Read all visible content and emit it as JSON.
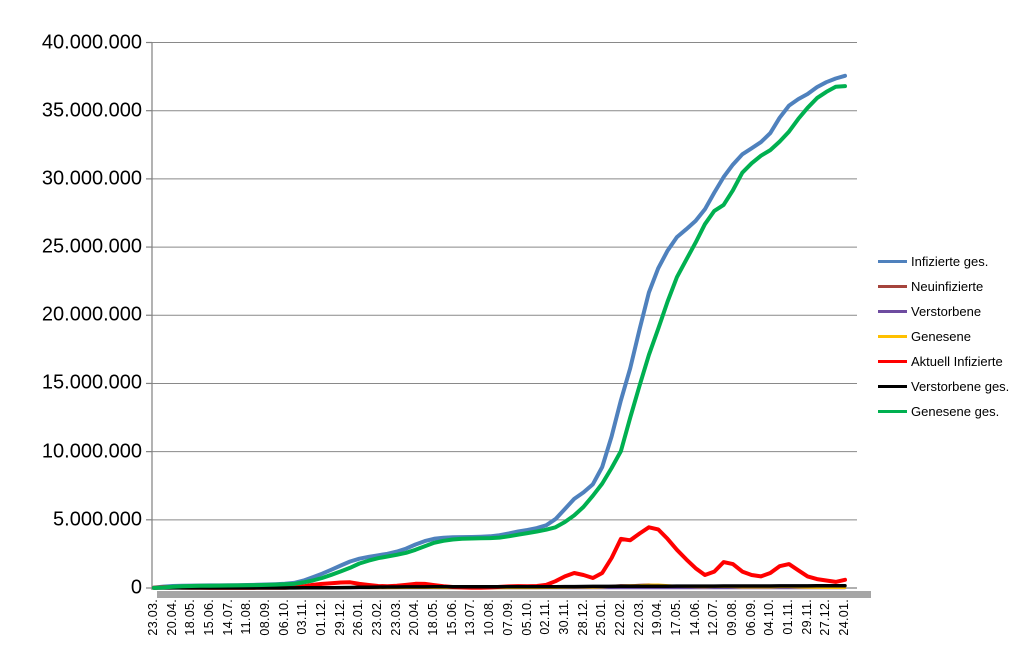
{
  "chart_data": {
    "type": "line",
    "title": "",
    "xlabel": "",
    "ylabel": "",
    "grid": true,
    "legend_position": "right",
    "values_unit": "millions",
    "y_axis": {
      "min": 0,
      "max": 40000000,
      "tick_step": 5000000,
      "tick_labels": [
        "40.000.000",
        "35.000.000",
        "30.000.000",
        "25.000.000",
        "20.000.000",
        "15.000.000",
        "10.000.000",
        "5.000.000",
        "0"
      ]
    },
    "x_tick_labels": [
      "23.03.",
      "20.04.",
      "18.05.",
      "15.06.",
      "14.07.",
      "11.08.",
      "08.09.",
      "06.10.",
      "03.11.",
      "01.12.",
      "29.12.",
      "26.01.",
      "23.02.",
      "23.03.",
      "20.04.",
      "18.05.",
      "15.06.",
      "13.07.",
      "10.08.",
      "07.09.",
      "05.10.",
      "02.11.",
      "30.11.",
      "28.12.",
      "25.01.",
      "22.02.",
      "22.03.",
      "19.04.",
      "17.05.",
      "14.06.",
      "12.07.",
      "09.08.",
      "06.09.",
      "04.10.",
      "01.11.",
      "29.11.",
      "27.12.",
      "24.01."
    ],
    "points_per_label": 2,
    "series": [
      {
        "name": "Infizierte ges.",
        "color": "#4F81BD",
        "values": [
          0.03,
          0.1,
          0.145,
          0.165,
          0.176,
          0.182,
          0.187,
          0.194,
          0.2,
          0.206,
          0.218,
          0.233,
          0.253,
          0.275,
          0.306,
          0.373,
          0.545,
          0.79,
          1.05,
          1.34,
          1.65,
          1.94,
          2.15,
          2.29,
          2.4,
          2.51,
          2.67,
          2.89,
          3.19,
          3.44,
          3.61,
          3.68,
          3.72,
          3.73,
          3.74,
          3.76,
          3.79,
          3.87,
          4.0,
          4.14,
          4.25,
          4.39,
          4.6,
          5.05,
          5.79,
          6.53,
          7.01,
          7.61,
          8.87,
          11.12,
          13.76,
          16.11,
          18.98,
          21.67,
          23.44,
          24.74,
          25.73,
          26.31,
          26.92,
          27.77,
          28.99,
          30.13,
          31.05,
          31.8,
          32.24,
          32.7,
          33.36,
          34.48,
          35.37,
          35.85,
          36.22,
          36.73,
          37.09,
          37.36,
          37.56
        ]
      },
      {
        "name": "Neuinfizierte",
        "color": "#A5443C",
        "values": [
          0.005,
          0.006,
          0.003,
          0.002,
          0.001,
          0.001,
          0.001,
          0.001,
          0.001,
          0.001,
          0.001,
          0.001,
          0.002,
          0.002,
          0.003,
          0.006,
          0.015,
          0.019,
          0.018,
          0.02,
          0.022,
          0.018,
          0.012,
          0.008,
          0.008,
          0.009,
          0.013,
          0.018,
          0.021,
          0.018,
          0.012,
          0.006,
          0.002,
          0.001,
          0.001,
          0.001,
          0.002,
          0.005,
          0.008,
          0.01,
          0.008,
          0.009,
          0.015,
          0.03,
          0.05,
          0.05,
          0.04,
          0.05,
          0.09,
          0.15,
          0.19,
          0.18,
          0.22,
          0.25,
          0.19,
          0.13,
          0.08,
          0.06,
          0.06,
          0.08,
          0.11,
          0.09,
          0.06,
          0.04,
          0.04,
          0.05,
          0.08,
          0.09,
          0.06,
          0.04,
          0.03,
          0.03,
          0.02,
          0.015,
          0.02
        ]
      },
      {
        "name": "Verstorbene",
        "color": "#6E4CA0",
        "values": [
          0.001,
          0.001,
          0.001,
          0.001,
          0.001,
          0.001,
          0.001,
          0.001,
          0.001,
          0.001,
          0.001,
          0.001,
          0.001,
          0.001,
          0.001,
          0.001,
          0.001,
          0.001,
          0.001,
          0.001,
          0.001,
          0.001,
          0.001,
          0.001,
          0.001,
          0.001,
          0.001,
          0.001,
          0.001,
          0.001,
          0.001,
          0.001,
          0.001,
          0.001,
          0.001,
          0.001,
          0.001,
          0.001,
          0.001,
          0.001,
          0.001,
          0.001,
          0.001,
          0.001,
          0.001,
          0.001,
          0.001,
          0.001,
          0.001,
          0.001,
          0.001,
          0.001,
          0.001,
          0.001,
          0.001,
          0.001,
          0.001,
          0.001,
          0.001,
          0.001,
          0.001,
          0.001,
          0.001,
          0.001,
          0.001,
          0.001,
          0.001,
          0.001,
          0.001,
          0.001,
          0.001,
          0.001,
          0.001,
          0.001,
          0.001
        ]
      },
      {
        "name": "Genesene",
        "color": "#FFC000",
        "values": [
          0.002,
          0.004,
          0.004,
          0.003,
          0.002,
          0.001,
          0.001,
          0.001,
          0.001,
          0.001,
          0.001,
          0.001,
          0.001,
          0.002,
          0.002,
          0.004,
          0.009,
          0.014,
          0.017,
          0.019,
          0.02,
          0.02,
          0.015,
          0.01,
          0.008,
          0.008,
          0.01,
          0.014,
          0.018,
          0.019,
          0.015,
          0.009,
          0.004,
          0.002,
          0.001,
          0.001,
          0.001,
          0.003,
          0.006,
          0.009,
          0.009,
          0.008,
          0.011,
          0.02,
          0.035,
          0.045,
          0.045,
          0.04,
          0.06,
          0.11,
          0.16,
          0.18,
          0.19,
          0.23,
          0.24,
          0.19,
          0.14,
          0.1,
          0.08,
          0.07,
          0.09,
          0.1,
          0.08,
          0.06,
          0.05,
          0.05,
          0.06,
          0.08,
          0.08,
          0.06,
          0.04,
          0.03,
          0.025,
          0.02,
          0.018
        ]
      },
      {
        "name": "Aktuell Infizierte",
        "color": "#FF0000",
        "values": [
          0.025,
          0.06,
          0.05,
          0.03,
          0.02,
          0.012,
          0.008,
          0.006,
          0.006,
          0.007,
          0.009,
          0.012,
          0.014,
          0.016,
          0.025,
          0.06,
          0.12,
          0.23,
          0.3,
          0.35,
          0.4,
          0.42,
          0.3,
          0.22,
          0.15,
          0.13,
          0.16,
          0.23,
          0.31,
          0.3,
          0.21,
          0.13,
          0.07,
          0.035,
          0.02,
          0.025,
          0.04,
          0.08,
          0.12,
          0.14,
          0.13,
          0.15,
          0.23,
          0.5,
          0.85,
          1.1,
          0.95,
          0.73,
          1.1,
          2.2,
          3.6,
          3.5,
          4.0,
          4.45,
          4.3,
          3.6,
          2.8,
          2.1,
          1.45,
          0.95,
          1.2,
          1.9,
          1.75,
          1.2,
          0.95,
          0.85,
          1.1,
          1.6,
          1.75,
          1.3,
          0.85,
          0.65,
          0.55,
          0.45,
          0.6
        ]
      },
      {
        "name": "Verstorbene ges.",
        "color": "#000000",
        "values": [
          0.001,
          0.003,
          0.005,
          0.007,
          0.008,
          0.0085,
          0.0088,
          0.009,
          0.0091,
          0.0092,
          0.0093,
          0.0094,
          0.0095,
          0.0096,
          0.0098,
          0.01,
          0.011,
          0.013,
          0.017,
          0.023,
          0.03,
          0.04,
          0.053,
          0.061,
          0.068,
          0.072,
          0.075,
          0.078,
          0.08,
          0.083,
          0.086,
          0.088,
          0.09,
          0.0905,
          0.091,
          0.0915,
          0.092,
          0.0922,
          0.0925,
          0.093,
          0.094,
          0.095,
          0.096,
          0.098,
          0.101,
          0.105,
          0.111,
          0.114,
          0.117,
          0.119,
          0.121,
          0.124,
          0.126,
          0.129,
          0.132,
          0.134,
          0.137,
          0.138,
          0.14,
          0.141,
          0.142,
          0.144,
          0.145,
          0.146,
          0.147,
          0.148,
          0.15,
          0.151,
          0.153,
          0.154,
          0.156,
          0.158,
          0.161,
          0.163,
          0.165
        ]
      },
      {
        "name": "Genesene ges.",
        "color": "#00B050",
        "values": [
          0.004,
          0.037,
          0.09,
          0.128,
          0.148,
          0.162,
          0.17,
          0.179,
          0.185,
          0.19,
          0.2,
          0.212,
          0.229,
          0.249,
          0.271,
          0.303,
          0.414,
          0.547,
          0.733,
          0.967,
          1.22,
          1.48,
          1.797,
          2.009,
          2.182,
          2.308,
          2.435,
          2.582,
          2.8,
          3.057,
          3.314,
          3.462,
          3.56,
          3.605,
          3.629,
          3.644,
          3.658,
          3.698,
          3.788,
          3.907,
          4.026,
          4.145,
          4.274,
          4.452,
          4.839,
          5.325,
          5.949,
          6.766,
          7.653,
          8.801,
          10.04,
          12.49,
          14.85,
          17.09,
          19.01,
          21.01,
          22.79,
          24.07,
          25.33,
          26.68,
          27.65,
          28.09,
          29.16,
          30.45,
          31.14,
          31.7,
          32.11,
          32.73,
          33.47,
          34.4,
          35.21,
          35.92,
          36.38,
          36.75,
          36.8
        ]
      }
    ],
    "colors": {
      "gridline": "#898989",
      "axis": "#808080",
      "axis_shadow": "#A6A6A6",
      "background": "#FFFFFF",
      "text": "#000000"
    }
  }
}
